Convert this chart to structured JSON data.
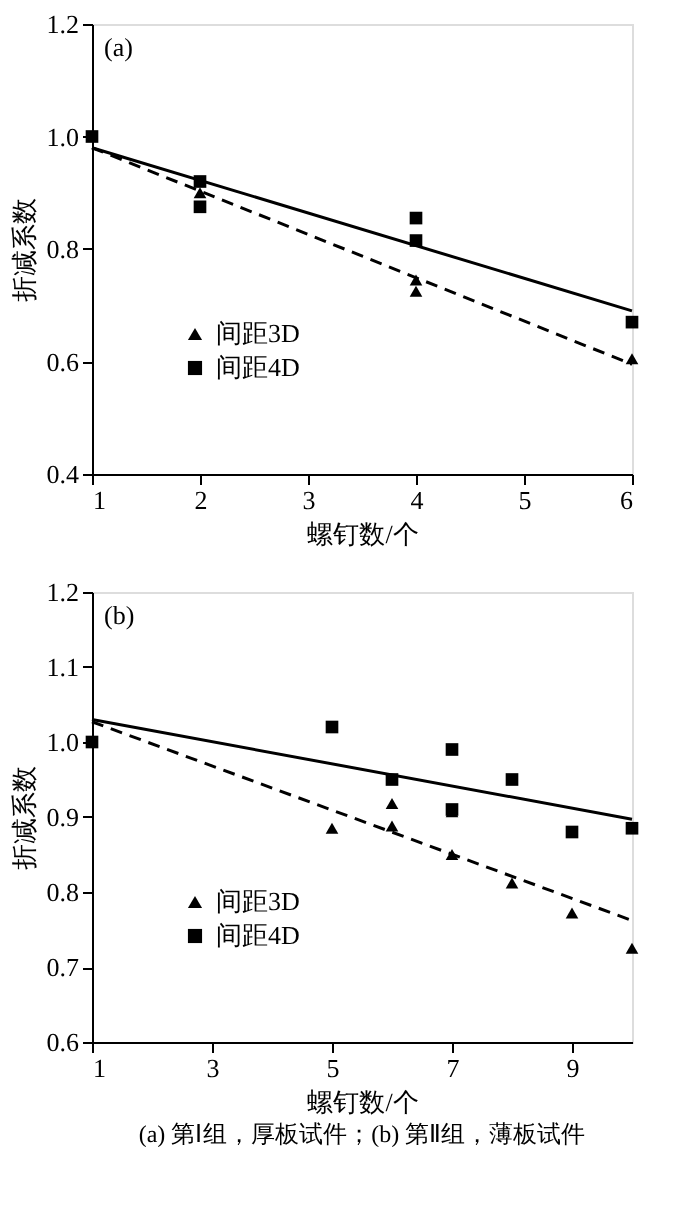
{
  "chart_data": [
    {
      "type": "scatter",
      "xlabel": "螺钉数/个",
      "ylabel": "折减系数",
      "xlim": [
        1,
        6
      ],
      "ylim": [
        0.4,
        1.2
      ],
      "xticks": [
        1,
        2,
        3,
        4,
        5,
        6
      ],
      "yticks": [
        0.4,
        0.6,
        0.8,
        {
          "value": 1,
          "label": "1.0"
        },
        1.2
      ],
      "grid": false,
      "legend": "left",
      "annotations": [
        "(a)"
      ],
      "series": [
        {
          "name": "间距3D",
          "marker": "triangle",
          "color": "#000000",
          "x": [
            2,
            4,
            4,
            6
          ],
          "values": [
            0.9,
            0.745,
            0.725,
            0.605
          ]
        },
        {
          "name": "间距4D",
          "marker": "square",
          "color": "#000000",
          "x": [
            1,
            2,
            2,
            4,
            4,
            6
          ],
          "values": [
            1.0,
            0.92,
            0.875,
            0.855,
            0.815,
            0.67
          ]
        },
        {
          "type": "line",
          "line_style": "dashed",
          "marker": "none",
          "color": "#000000",
          "x": [
            1,
            6
          ],
          "values": [
            0.98,
            0.595
          ]
        },
        {
          "type": "line",
          "line_style": "solid",
          "marker": "none",
          "color": "#000000",
          "x": [
            1,
            6
          ],
          "values": [
            0.98,
            0.69
          ]
        }
      ]
    },
    {
      "type": "scatter",
      "xlabel": "螺钉数/个",
      "ylabel": "折减系数",
      "xlim": [
        1,
        10
      ],
      "ylim": [
        0.6,
        1.2
      ],
      "xticks": [
        1,
        3,
        5,
        7,
        9
      ],
      "yticks": [
        0.6,
        0.7,
        0.8,
        0.9,
        {
          "value": 1,
          "label": "1.0"
        },
        1.1,
        1.2
      ],
      "grid": false,
      "legend": "left",
      "annotations": [
        "(b)",
        "(a) 第Ⅰ组，厚板试件；(b) 第Ⅱ组，薄板试件"
      ],
      "series": [
        {
          "name": "间距3D",
          "marker": "triangle",
          "color": "#000000",
          "x": [
            5,
            6,
            6,
            7,
            7,
            8,
            9,
            10
          ],
          "values": [
            0.885,
            0.918,
            0.888,
            0.907,
            0.85,
            0.812,
            0.772,
            0.725
          ]
        },
        {
          "name": "间距4D",
          "marker": "square",
          "color": "#000000",
          "x": [
            1,
            5,
            6,
            7,
            7,
            8,
            9,
            10
          ],
          "values": [
            1.0,
            1.02,
            0.95,
            0.99,
            0.91,
            0.95,
            0.88,
            0.885
          ]
        },
        {
          "type": "line",
          "line_style": "dashed",
          "marker": "none",
          "color": "#000000",
          "x": [
            1,
            10
          ],
          "values": [
            1.027,
            0.762
          ]
        },
        {
          "type": "line",
          "line_style": "solid",
          "marker": "none",
          "color": "#000000",
          "x": [
            1,
            10
          ],
          "values": [
            1.03,
            0.897
          ]
        }
      ]
    }
  ]
}
